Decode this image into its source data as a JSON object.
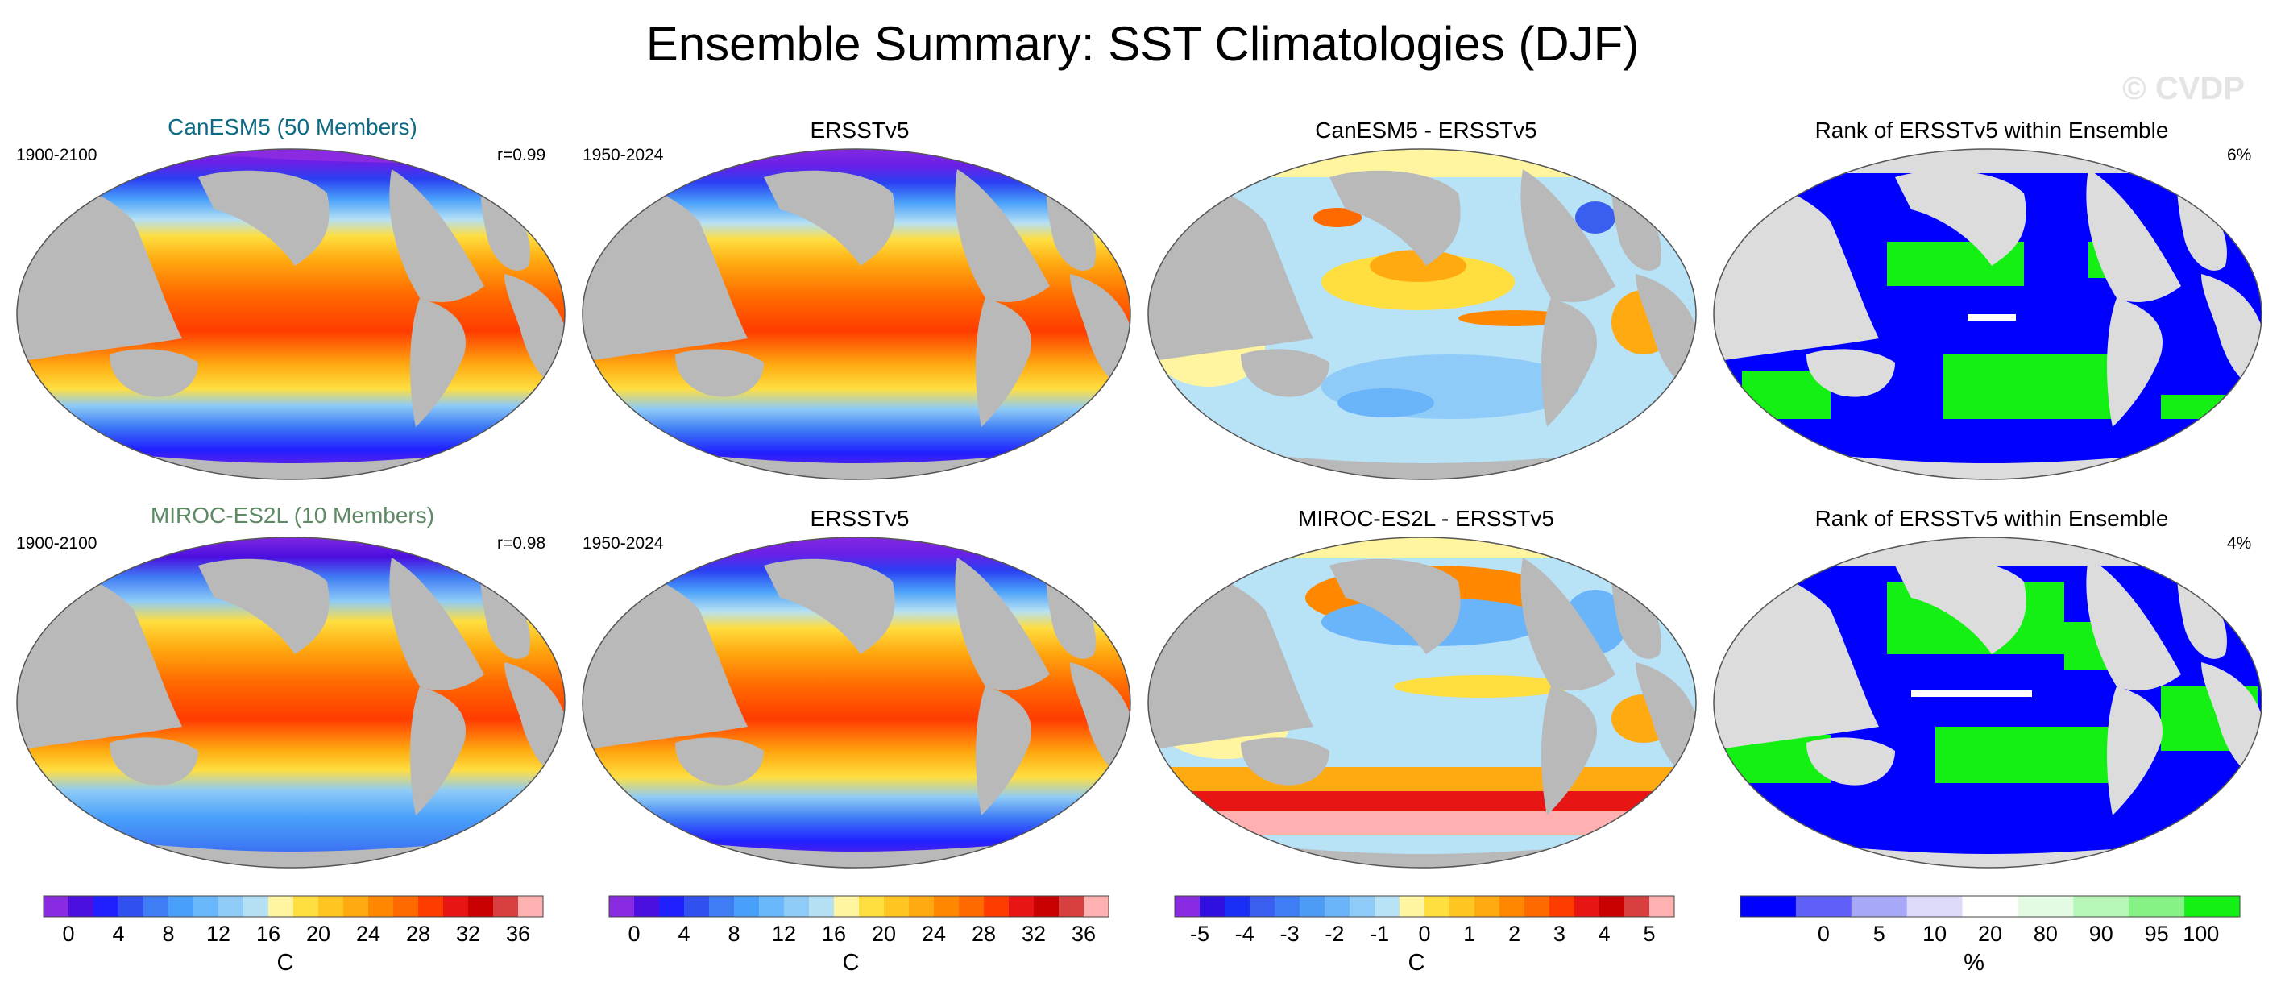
{
  "title": "Ensemble Summary: SST Climatologies (DJF)",
  "watermark": "© CVDP",
  "rows": [
    {
      "model_title": "CanESM5 (50 Members)",
      "model_title_color": "#0f6b85",
      "model_years": "1900-2100",
      "correlation": "r=0.99",
      "obs_title": "ERSSTv5",
      "obs_years": "1950-2024",
      "diff_title": "CanESM5 - ERSSTv5",
      "rank_title": "Rank of ERSSTv5 within Ensemble",
      "rank_pct": "6%"
    },
    {
      "model_title": "MIROC-ES2L (10 Members)",
      "model_title_color": "#5f8a66",
      "model_years": "1900-2100",
      "correlation": "r=0.98",
      "obs_title": "ERSSTv5",
      "obs_years": "1950-2024",
      "diff_title": "MIROC-ES2L - ERSSTv5",
      "rank_title": "Rank of ERSSTv5 within Ensemble",
      "rank_pct": "4%"
    }
  ],
  "chart_data": [
    {
      "type": "colorbar",
      "label": "C",
      "tick_labels": [
        "0",
        "4",
        "8",
        "12",
        "16",
        "20",
        "24",
        "28",
        "32",
        "36"
      ],
      "colors": [
        "#8a2be2",
        "#4b0fe0",
        "#2020ff",
        "#3050f0",
        "#3f7df5",
        "#49a0fa",
        "#69b8fb",
        "#8ecbf7",
        "#b5e0f4",
        "#fff5a0",
        "#ffde40",
        "#ffc520",
        "#ffaa10",
        "#ff8800",
        "#ff6a00",
        "#ff3c00",
        "#e81515",
        "#c80000",
        "#d84040",
        "#ffb0b0"
      ]
    },
    {
      "type": "colorbar",
      "label": "C",
      "tick_labels": [
        "0",
        "4",
        "8",
        "12",
        "16",
        "20",
        "24",
        "28",
        "32",
        "36"
      ],
      "colors": [
        "#8a2be2",
        "#4b0fe0",
        "#2020ff",
        "#3050f0",
        "#3f7df5",
        "#49a0fa",
        "#69b8fb",
        "#8ecbf7",
        "#b5e0f4",
        "#fff5a0",
        "#ffde40",
        "#ffc520",
        "#ffaa10",
        "#ff8800",
        "#ff6a00",
        "#ff3c00",
        "#e81515",
        "#c80000",
        "#d84040",
        "#ffb0b0"
      ]
    },
    {
      "type": "colorbar",
      "label": "C",
      "tick_labels": [
        "-5",
        "-4",
        "-3",
        "-2",
        "-1",
        "0",
        "1",
        "2",
        "3",
        "4",
        "5"
      ],
      "colors": [
        "#8a2be2",
        "#3010e0",
        "#1a2ff5",
        "#3a5ff0",
        "#3f7df5",
        "#4c9cf6",
        "#6ab4fa",
        "#8fcbf9",
        "#b8e2f6",
        "#fff5a0",
        "#ffde40",
        "#ffc520",
        "#ffaa10",
        "#ff8800",
        "#ff6a00",
        "#ff3c00",
        "#e81515",
        "#c80000",
        "#d84040",
        "#ffb0b0"
      ]
    },
    {
      "type": "colorbar",
      "label": "%",
      "tick_labels": [
        "0",
        "5",
        "10",
        "20",
        "80",
        "90",
        "95",
        "100"
      ],
      "colors": [
        "#0000ff",
        "#6060f8",
        "#a8a8f8",
        "#dcdcfa",
        "#ffffff",
        "#e2fbe2",
        "#b6f6b6",
        "#86f286",
        "#14f014"
      ]
    }
  ]
}
